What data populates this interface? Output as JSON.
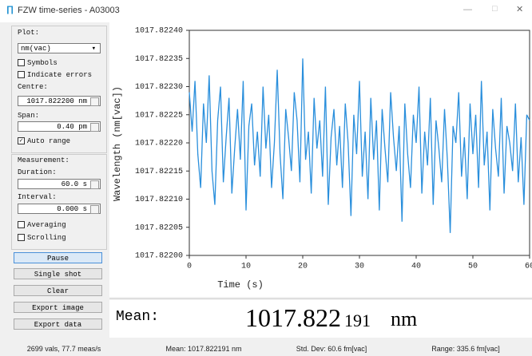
{
  "window": {
    "title": "FZW time-series - A03003"
  },
  "panel": {
    "plot_label": "Plot:",
    "unit_select": "nm(vac)",
    "symbols": "Symbols",
    "indicate_errors": "Indicate errors",
    "centre_label": "Centre:",
    "centre_value": "1017.822200 nm",
    "span_label": "Span:",
    "span_value": "0.40 pm",
    "auto_range": "Auto range",
    "measurement_label": "Measurement:",
    "duration_label": "Duration:",
    "duration_value": "60.0 s",
    "interval_label": "Interval:",
    "interval_value": "0.000 s",
    "averaging": "Averaging",
    "scrolling": "Scrolling",
    "buttons": [
      "Pause",
      "Single shot",
      "Clear",
      "Export image",
      "Export data"
    ]
  },
  "mean_box": {
    "label": "Mean:",
    "value_main": "1017.822",
    "value_small": "191",
    "unit": "nm"
  },
  "status_bar": [
    "2699 vals, 77.7 meas/s",
    "Mean: 1017.822191 nm",
    "Std. Dev: 60.6 fm[vac]",
    "Range: 335.6 fm[vac]"
  ],
  "chart_data": {
    "type": "line",
    "x_label": "Time (s)",
    "y_label": "Wavelength (nm[vac])",
    "xlim": [
      0,
      60
    ],
    "xticks": [
      0,
      10,
      20,
      30,
      40,
      50,
      60
    ],
    "ylim": [
      1017.822,
      1017.8224
    ],
    "yticks": [
      {
        "value": 1017.822,
        "label": "1017.82200"
      },
      1017.82205,
      {
        "value": 1017.8221,
        "label": "1017.82210"
      },
      1017.82215,
      {
        "value": 1017.8222,
        "label": "1017.82220"
      },
      1017.82225,
      {
        "value": 1017.8223,
        "label": "1017.82230"
      },
      1017.82235,
      {
        "value": 1017.8224,
        "label": "1017.82240"
      }
    ],
    "series": [
      {
        "color": "#2a8fdc",
        "x": [
          0,
          0.5,
          1,
          1.5,
          2,
          2.5,
          3,
          3.5,
          4,
          4.5,
          5,
          5.5,
          6,
          6.5,
          7,
          7.5,
          8,
          8.5,
          9,
          9.5,
          10,
          10.5,
          11,
          11.5,
          12,
          12.5,
          13,
          13.5,
          14,
          14.5,
          15,
          15.5,
          16,
          16.5,
          17,
          17.5,
          18,
          18.5,
          19,
          19.5,
          20,
          20.5,
          21,
          21.5,
          22,
          22.5,
          23,
          23.5,
          24,
          24.5,
          25,
          25.5,
          26,
          26.5,
          27,
          27.5,
          28,
          28.5,
          29,
          29.5,
          30,
          30.5,
          31,
          31.5,
          32,
          32.5,
          33,
          33.5,
          34,
          34.5,
          35,
          35.5,
          36,
          36.5,
          37,
          37.5,
          38,
          38.5,
          39,
          39.5,
          40,
          40.5,
          41,
          41.5,
          42,
          42.5,
          43,
          43.5,
          44,
          44.5,
          45,
          45.5,
          46,
          46.5,
          47,
          47.5,
          48,
          48.5,
          49,
          49.5,
          50,
          50.5,
          51,
          51.5,
          52,
          52.5,
          53,
          53.5,
          54,
          54.5,
          55,
          55.5,
          56,
          56.5,
          57,
          57.5,
          58,
          58.5,
          59,
          59.5,
          60
        ],
        "values": [
          1017.82229,
          1017.82222,
          1017.82231,
          1017.82218,
          1017.82212,
          1017.82227,
          1017.8222,
          1017.82232,
          1017.82215,
          1017.82209,
          1017.82224,
          1017.8223,
          1017.82213,
          1017.82221,
          1017.82228,
          1017.82211,
          1017.82219,
          1017.82226,
          1017.82217,
          1017.82231,
          1017.82208,
          1017.82223,
          1017.82227,
          1017.82216,
          1017.82222,
          1017.82214,
          1017.8223,
          1017.82219,
          1017.82225,
          1017.82212,
          1017.8222,
          1017.82233,
          1017.82218,
          1017.8221,
          1017.82226,
          1017.82221,
          1017.82215,
          1017.82229,
          1017.82224,
          1017.82213,
          1017.82235,
          1017.82217,
          1017.82222,
          1017.82211,
          1017.82228,
          1017.82219,
          1017.82224,
          1017.82214,
          1017.8223,
          1017.82209,
          1017.82221,
          1017.82226,
          1017.82216,
          1017.82223,
          1017.82212,
          1017.82227,
          1017.8222,
          1017.82207,
          1017.82225,
          1017.82218,
          1017.82231,
          1017.82214,
          1017.82222,
          1017.8221,
          1017.82228,
          1017.82217,
          1017.82224,
          1017.82208,
          1017.82226,
          1017.82219,
          1017.82213,
          1017.82229,
          1017.82221,
          1017.82215,
          1017.82223,
          1017.82206,
          1017.82227,
          1017.82218,
          1017.82212,
          1017.82225,
          1017.8222,
          1017.8223,
          1017.82211,
          1017.82222,
          1017.82216,
          1017.82228,
          1017.82209,
          1017.82224,
          1017.82219,
          1017.82213,
          1017.82226,
          1017.82217,
          1017.82204,
          1017.82223,
          1017.8222,
          1017.82229,
          1017.82214,
          1017.82221,
          1017.8221,
          1017.82227,
          1017.82218,
          1017.82225,
          1017.82212,
          1017.82231,
          1017.82216,
          1017.82222,
          1017.82208,
          1017.82226,
          1017.82219,
          1017.82214,
          1017.82228,
          1017.82211,
          1017.82223,
          1017.8222,
          1017.82215,
          1017.82227,
          1017.82213,
          1017.82221,
          1017.82209,
          1017.82225,
          1017.82224
        ]
      }
    ]
  }
}
